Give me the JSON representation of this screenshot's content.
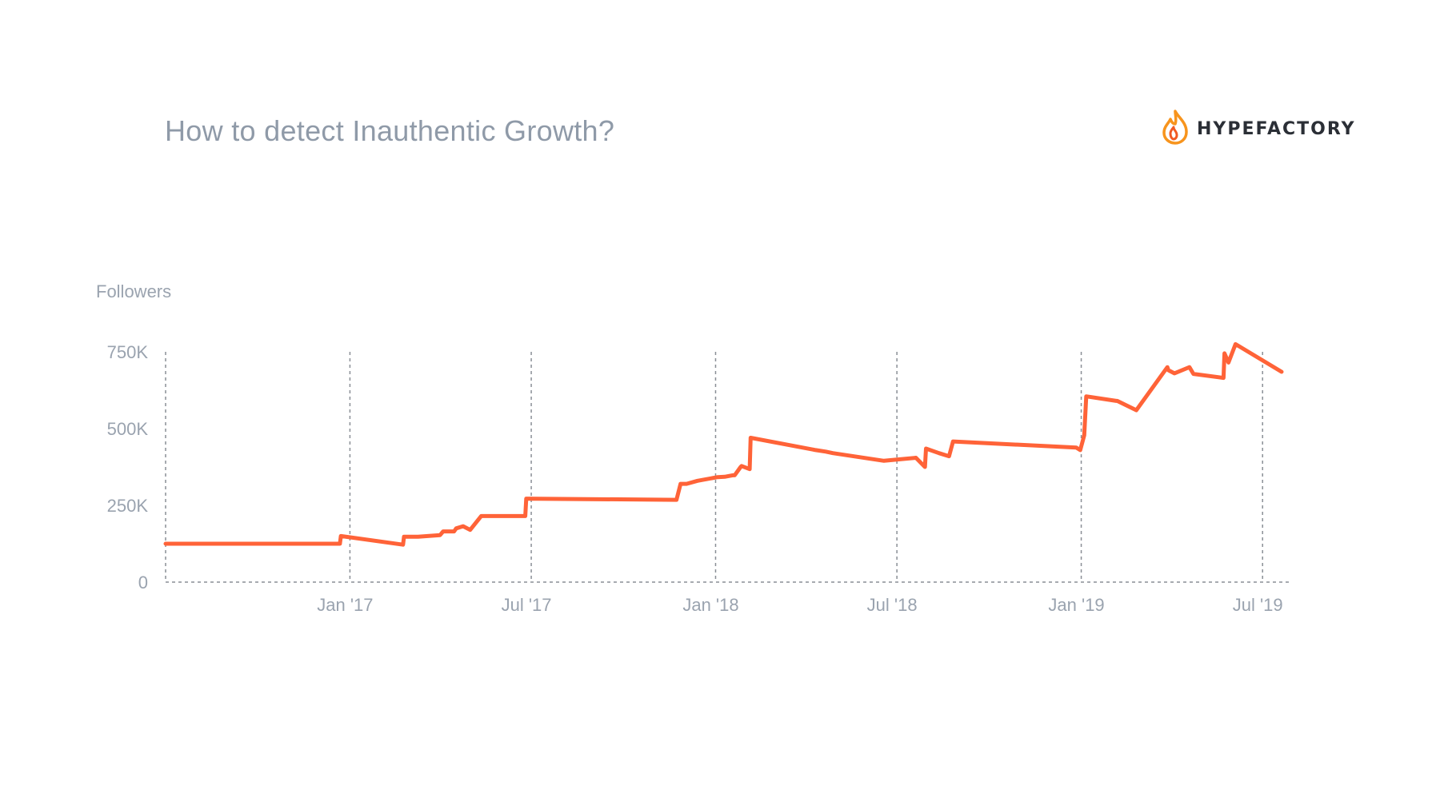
{
  "title": "How to detect Inauthentic Growth?",
  "brand": {
    "name": "HYPEFACTORY",
    "icon": "flame-icon",
    "colors": {
      "flame_outer": "#f7941d",
      "flame_inner": "#f15a24",
      "text": "#2b2f36"
    }
  },
  "colors": {
    "line": "#ff6338",
    "grid": "#8a8f96",
    "text": "#9aa3af"
  },
  "chart_data": {
    "type": "line",
    "title": "How to detect Inauthentic Growth?",
    "ylabel": "Followers",
    "xlabel": "",
    "x_range": [
      "2016-07-01",
      "2019-07-20"
    ],
    "ylim": [
      0,
      750000
    ],
    "yticks": [
      {
        "value": 0,
        "label": "0"
      },
      {
        "value": 250000,
        "label": "250K"
      },
      {
        "value": 500000,
        "label": "500K"
      },
      {
        "value": 750000,
        "label": "750K"
      }
    ],
    "xticks": [
      {
        "date": "2017-01-01",
        "label": "Jan '17"
      },
      {
        "date": "2017-07-01",
        "label": "Jul '17"
      },
      {
        "date": "2018-01-01",
        "label": "Jan '18"
      },
      {
        "date": "2018-07-01",
        "label": "Jul '18"
      },
      {
        "date": "2019-01-01",
        "label": "Jan '19"
      },
      {
        "date": "2019-07-01",
        "label": "Jul '19"
      }
    ],
    "grid": "vertical dashed at x ticks",
    "legend": "none",
    "series": [
      {
        "x": [
          "2016-07-01",
          "2016-12-22",
          "2016-12-23",
          "2017-02-23",
          "2017-02-24",
          "2017-03-10",
          "2017-04-01",
          "2017-04-04",
          "2017-04-15",
          "2017-04-17",
          "2017-04-24",
          "2017-05-01",
          "2017-05-12",
          "2017-05-14",
          "2017-06-25",
          "2017-06-26",
          "2017-11-23",
          "2017-11-27",
          "2017-12-03",
          "2017-12-14",
          "2018-01-03",
          "2018-01-10",
          "2018-01-18",
          "2018-01-20",
          "2018-01-26",
          "2018-01-27",
          "2018-02-04",
          "2018-02-05",
          "2018-04-11",
          "2018-04-21",
          "2018-04-28",
          "2018-06-18",
          "2018-07-20",
          "2018-07-29",
          "2018-07-30",
          "2018-08-12",
          "2018-08-22",
          "2018-08-26",
          "2018-12-27",
          "2018-12-31",
          "2019-01-04",
          "2019-01-06",
          "2019-02-05",
          "2019-02-06",
          "2019-02-25",
          "2019-03-28",
          "2019-03-29",
          "2019-04-04",
          "2019-04-19",
          "2019-04-23",
          "2019-05-23",
          "2019-05-24",
          "2019-05-28",
          "2019-06-04",
          "2019-07-20"
        ],
        "y": [
          125000,
          125000,
          150000,
          122000,
          148000,
          148000,
          153000,
          165000,
          165000,
          175000,
          182000,
          170000,
          215000,
          215000,
          215000,
          272000,
          268000,
          320000,
          320000,
          330000,
          342000,
          343000,
          348000,
          348000,
          375000,
          378000,
          368000,
          470000,
          430000,
          425000,
          420000,
          395000,
          405000,
          375000,
          435000,
          420000,
          410000,
          458000,
          438000,
          430000,
          478000,
          605000,
          590000,
          590000,
          560000,
          700000,
          690000,
          680000,
          700000,
          678000,
          665000,
          745000,
          715000,
          775000,
          685000
        ]
      }
    ]
  }
}
